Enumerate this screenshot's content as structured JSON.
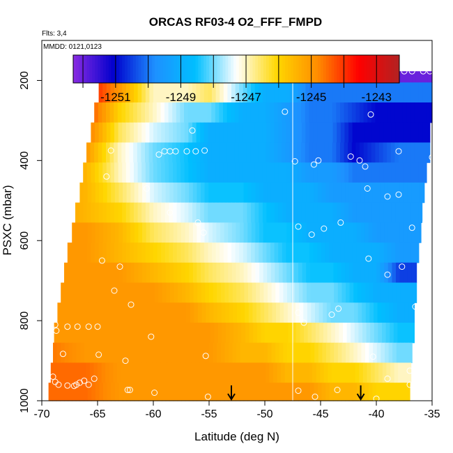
{
  "chart_data": {
    "type": "heatmap",
    "title": "ORCAS RF03-4 O2_FFF_FMPD",
    "subtitle_flights": "Flts: 3,4",
    "subtitle_dates": "MMDD: 0121,0123",
    "xlabel": "Latitude (deg N)",
    "ylabel": "PSXC (mbar)",
    "xlim": [
      -70,
      -35
    ],
    "ylim": [
      1000,
      100
    ],
    "x_ticks": [
      -70,
      -65,
      -60,
      -55,
      -50,
      -45,
      -40,
      -35
    ],
    "y_ticks": [
      200,
      400,
      600,
      800,
      1000
    ],
    "colorbar": {
      "range": [
        -1252.3,
        -1242.3
      ],
      "tick_values": [
        -1251,
        -1249,
        -1247,
        -1245,
        -1243
      ],
      "tick_labels": [
        "-1251",
        "-1249",
        "-1247",
        "-1245",
        "-1243"
      ],
      "colors": [
        "#8a2be2",
        "#0000cd",
        "#1e90ff",
        "#00bfff",
        "#ffffff",
        "#ffd700",
        "#ff8c00",
        "#ff0000",
        "#b22222"
      ]
    },
    "field": {
      "p_levels": [
        180,
        230,
        280,
        330,
        380,
        430,
        480,
        530,
        580,
        630,
        680,
        730,
        780,
        830,
        880,
        930,
        980
      ],
      "row_xmin": [
        -64.8,
        -64.9,
        -65.3,
        -65.6,
        -66.0,
        -66.3,
        -66.6,
        -67.0,
        -67.3,
        -67.7,
        -68.0,
        -68.3,
        -68.6,
        -68.9,
        -69.0,
        -69.2,
        -69.4
      ],
      "row_xmax": [
        -35.0,
        -35.0,
        -35.0,
        -35.2,
        -35.2,
        -35.5,
        -35.7,
        -35.9,
        -36.0,
        -36.2,
        -36.4,
        -36.4,
        -36.6,
        -36.6,
        -36.8,
        -36.9,
        -37.0
      ],
      "lat_nodes": [
        -70,
        -66,
        -63,
        -60,
        -57,
        -55,
        -52,
        -50,
        -48,
        -46,
        -44,
        -42,
        -40,
        -38,
        -35
      ],
      "values": [
        [
          -1243,
          -1243,
          -1245,
          -1247,
          -1248,
          -1246,
          -1243,
          -1245,
          -1249,
          -1250,
          -1250,
          -1250,
          -1251,
          -1252,
          -1252
        ],
        [
          -1243,
          -1243.5,
          -1245,
          -1247,
          -1247,
          -1246.5,
          -1248,
          -1249,
          -1249,
          -1250,
          -1250,
          -1250,
          -1250,
          -1250,
          -1250
        ],
        [
          -1243.5,
          -1244,
          -1246,
          -1247,
          -1248,
          -1248,
          -1249,
          -1249,
          -1249.5,
          -1250,
          -1250,
          -1250.5,
          -1251,
          -1251,
          -1251
        ],
        [
          -1244,
          -1244.5,
          -1246.5,
          -1247.5,
          -1248,
          -1249,
          -1249,
          -1249,
          -1249.5,
          -1250,
          -1250,
          -1251,
          -1251,
          -1251,
          -1251
        ],
        [
          -1244,
          -1245,
          -1247,
          -1248,
          -1248.5,
          -1249,
          -1249,
          -1249,
          -1249.5,
          -1250,
          -1250,
          -1251,
          -1250.5,
          -1250,
          -1250
        ],
        [
          -1244.5,
          -1245.5,
          -1247,
          -1248,
          -1248.5,
          -1249,
          -1249,
          -1249,
          -1249,
          -1249.5,
          -1249.5,
          -1250,
          -1250,
          -1250,
          -1250
        ],
        [
          -1245,
          -1245.5,
          -1246.5,
          -1247.5,
          -1248,
          -1248.5,
          -1248.5,
          -1249,
          -1249,
          -1249,
          -1249.5,
          -1249.5,
          -1249.5,
          -1249.5,
          -1249.5
        ],
        [
          -1245,
          -1245.5,
          -1246,
          -1247,
          -1247.5,
          -1248,
          -1248,
          -1248.5,
          -1249,
          -1249,
          -1249,
          -1249.5,
          -1249.5,
          -1249.5,
          -1249.5
        ],
        [
          -1245,
          -1245,
          -1245.5,
          -1246.5,
          -1247,
          -1247.5,
          -1248,
          -1248.5,
          -1248.5,
          -1249,
          -1249,
          -1249,
          -1249.5,
          -1249.5,
          -1249.5
        ],
        [
          -1245,
          -1245,
          -1245.5,
          -1246,
          -1246.5,
          -1247,
          -1247.5,
          -1248,
          -1248.5,
          -1248.5,
          -1249,
          -1249,
          -1249,
          -1249.5,
          -1249.5
        ],
        [
          -1245,
          -1245,
          -1245,
          -1245.5,
          -1246,
          -1246.5,
          -1247,
          -1247.5,
          -1248,
          -1248.5,
          -1248.5,
          -1249,
          -1249,
          -1250.5,
          -1250.5
        ],
        [
          -1245,
          -1245,
          -1245,
          -1245,
          -1245.5,
          -1246,
          -1246.5,
          -1247,
          -1247.5,
          -1248,
          -1248,
          -1248.5,
          -1249,
          -1249,
          -1249
        ],
        [
          -1245,
          -1245,
          -1245,
          -1245,
          -1245,
          -1245.5,
          -1246,
          -1246.5,
          -1247,
          -1247.5,
          -1248,
          -1248,
          -1248.5,
          -1249,
          -1249
        ],
        [
          -1245,
          -1245,
          -1245,
          -1245,
          -1245,
          -1245,
          -1245.5,
          -1246,
          -1246,
          -1246.5,
          -1247,
          -1247.5,
          -1248,
          -1248.5,
          -1248.5
        ],
        [
          -1244.5,
          -1245,
          -1245,
          -1245,
          -1245,
          -1245,
          -1245.5,
          -1245.5,
          -1246,
          -1246,
          -1246.5,
          -1247,
          -1247.5,
          -1248,
          -1248
        ],
        [
          -1244.5,
          -1244.5,
          -1245,
          -1245,
          -1245,
          -1245,
          -1245,
          -1245,
          -1245.5,
          -1245.5,
          -1246,
          -1246,
          -1246.5,
          -1247,
          -1247
        ],
        [
          -1244.5,
          -1244.5,
          -1245,
          -1245,
          -1245,
          -1245,
          -1245,
          -1245,
          -1245,
          -1245,
          -1245.5,
          -1245.5,
          -1246,
          -1246,
          -1246
        ]
      ]
    },
    "vertical_line_x": -47.5,
    "markers": [
      {
        "type": "down-arrow",
        "x": -53,
        "p": 1000
      },
      {
        "type": "down-arrow",
        "x": -41.4,
        "p": 1000
      }
    ],
    "observation_points": [
      [
        -64.7,
        177
      ],
      [
        -62.5,
        177
      ],
      [
        -60.2,
        177
      ],
      [
        -57.3,
        177
      ],
      [
        -56.0,
        177
      ],
      [
        -54.5,
        177
      ],
      [
        -53.2,
        177
      ],
      [
        -52.0,
        177
      ],
      [
        -50.5,
        177
      ],
      [
        -49.5,
        177
      ],
      [
        -48.5,
        177
      ],
      [
        -48.0,
        177
      ],
      [
        -40.8,
        187
      ],
      [
        -39.2,
        177
      ],
      [
        -38.3,
        177
      ],
      [
        -37.5,
        177
      ],
      [
        -36.8,
        177
      ],
      [
        -35.8,
        177
      ],
      [
        -35.2,
        177
      ],
      [
        -48.2,
        278
      ],
      [
        -40.5,
        285
      ],
      [
        -56.5,
        325
      ],
      [
        -63.8,
        375
      ],
      [
        -59.5,
        385
      ],
      [
        -59.0,
        377
      ],
      [
        -58.5,
        377
      ],
      [
        -58.0,
        377
      ],
      [
        -57.0,
        377
      ],
      [
        -56.2,
        377
      ],
      [
        -55.4,
        375
      ],
      [
        -47.3,
        402
      ],
      [
        -45.6,
        410
      ],
      [
        -45.2,
        400
      ],
      [
        -42.3,
        390
      ],
      [
        -41.5,
        400
      ],
      [
        -41.0,
        415
      ],
      [
        -38.0,
        377
      ],
      [
        -35.0,
        392
      ],
      [
        -64.2,
        440
      ],
      [
        -60.6,
        470
      ],
      [
        -40.8,
        470
      ],
      [
        -39.0,
        490
      ],
      [
        -38.0,
        485
      ],
      [
        -58.5,
        530
      ],
      [
        -56.0,
        555
      ],
      [
        -55.5,
        580
      ],
      [
        -47.0,
        565
      ],
      [
        -45.8,
        585
      ],
      [
        -44.7,
        570
      ],
      [
        -43.2,
        555
      ],
      [
        -36.8,
        568
      ],
      [
        -35.6,
        555
      ],
      [
        -64.6,
        650
      ],
      [
        -63.0,
        665
      ],
      [
        -40.7,
        645
      ],
      [
        -39.0,
        685
      ],
      [
        -37.7,
        665
      ],
      [
        -68.8,
        730
      ],
      [
        -63.5,
        725
      ],
      [
        -62.0,
        760
      ],
      [
        -47.0,
        780
      ],
      [
        -46.5,
        805
      ],
      [
        -44.0,
        785
      ],
      [
        -43.4,
        770
      ],
      [
        -36.5,
        765
      ],
      [
        -68.8,
        810
      ],
      [
        -68.7,
        825
      ],
      [
        -67.7,
        815
      ],
      [
        -66.8,
        815
      ],
      [
        -65.8,
        815
      ],
      [
        -65.0,
        815
      ],
      [
        -60.2,
        840
      ],
      [
        -55.3,
        888
      ],
      [
        -68.1,
        883
      ],
      [
        -64.9,
        885
      ],
      [
        -62.5,
        900
      ],
      [
        -40.3,
        890
      ],
      [
        -39.0,
        945
      ],
      [
        -37.0,
        925
      ],
      [
        -69.0,
        940
      ],
      [
        -68.8,
        953
      ],
      [
        -68.5,
        960
      ],
      [
        -67.7,
        962
      ],
      [
        -67.1,
        963
      ],
      [
        -66.9,
        960
      ],
      [
        -66.6,
        955
      ],
      [
        -66.2,
        950
      ],
      [
        -65.8,
        960
      ],
      [
        -65.3,
        945
      ],
      [
        -62.3,
        973
      ],
      [
        -62.1,
        973
      ],
      [
        -59.9,
        980
      ],
      [
        -55.1,
        990
      ],
      [
        -47.0,
        975
      ],
      [
        -45.5,
        990
      ],
      [
        -43.5,
        973
      ],
      [
        -40.0,
        995
      ],
      [
        -37.0,
        960
      ],
      [
        -36.5,
        978
      ]
    ]
  }
}
